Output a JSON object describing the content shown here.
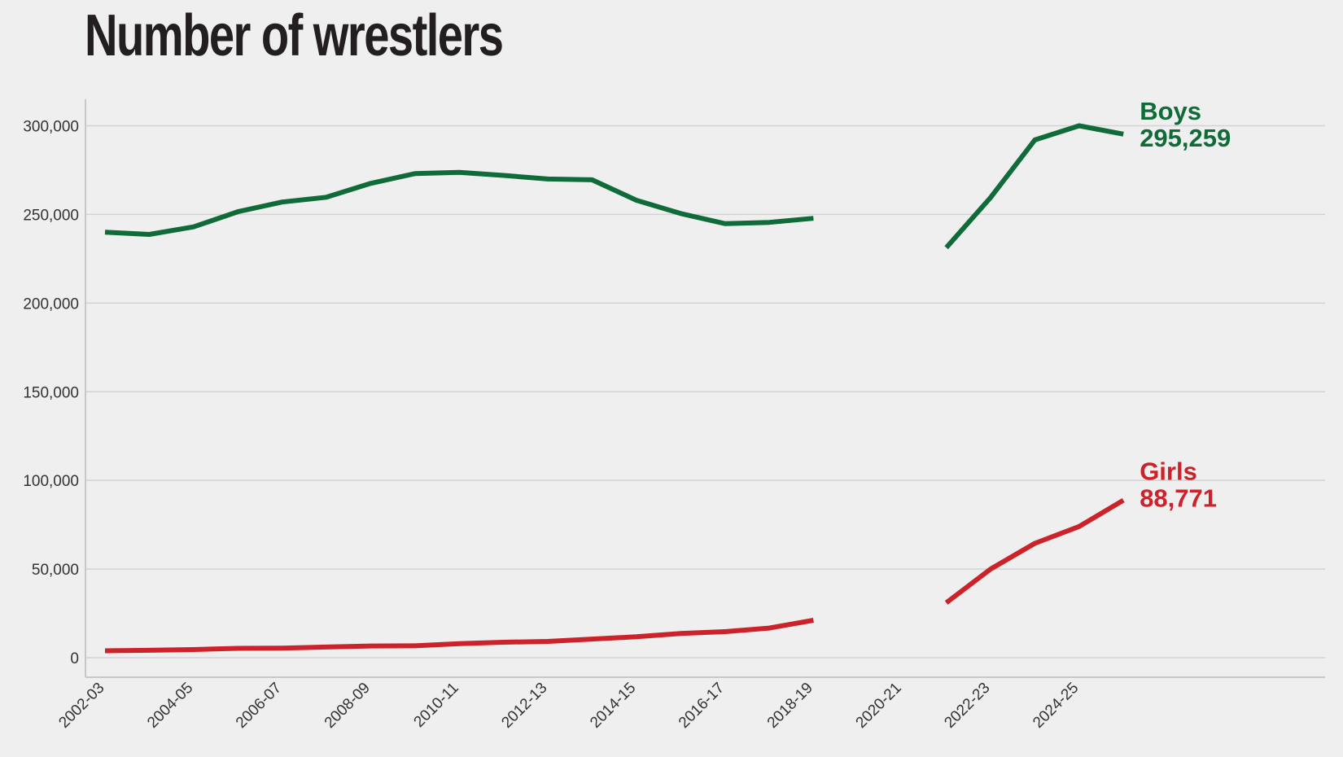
{
  "chart_data": {
    "type": "line",
    "title": "Number of wrestlers",
    "xlabel": "",
    "ylabel": "",
    "ylim": [
      -10000,
      315000
    ],
    "yticks": [
      0,
      50000,
      100000,
      150000,
      200000,
      250000,
      300000
    ],
    "ytick_labels": [
      "0",
      "50,000",
      "100,000",
      "150,000",
      "200,000",
      "250,000",
      "300,000"
    ],
    "x": [
      "2002-03",
      "2003-04",
      "2004-05",
      "2005-06",
      "2006-07",
      "2007-08",
      "2008-09",
      "2009-10",
      "2010-11",
      "2011-12",
      "2012-13",
      "2013-14",
      "2014-15",
      "2015-16",
      "2016-17",
      "2017-18",
      "2018-19",
      "2019-20",
      "2020-21",
      "2021-22",
      "2022-23",
      "2023-24",
      "2024-25",
      "2025-26"
    ],
    "xtick_labels": [
      "2002-03",
      "2004-05",
      "2006-07",
      "2008-09",
      "2010-11",
      "2012-13",
      "2014-15",
      "2016-17",
      "2018-19",
      "2020-21",
      "2022-23",
      "2024-25"
    ],
    "grid": true,
    "series": [
      {
        "name": "Boys",
        "color": "#0f6b38",
        "end_value_label": "295,259",
        "values": [
          240000,
          238700,
          243000,
          251500,
          257000,
          259700,
          267500,
          273000,
          273700,
          272000,
          270000,
          269500,
          258000,
          250500,
          244800,
          245500,
          247800,
          null,
          null,
          231300,
          259500,
          292000,
          300000,
          295259
        ]
      },
      {
        "name": "Girls",
        "color": "#cc2229",
        "end_value_label": "88,771",
        "values": [
          3900,
          4200,
          4600,
          5300,
          5400,
          6000,
          6600,
          6700,
          7900,
          8700,
          9200,
          10500,
          11800,
          13700,
          14700,
          16700,
          21100,
          null,
          null,
          31000,
          50000,
          64500,
          74000,
          88771
        ]
      }
    ]
  }
}
